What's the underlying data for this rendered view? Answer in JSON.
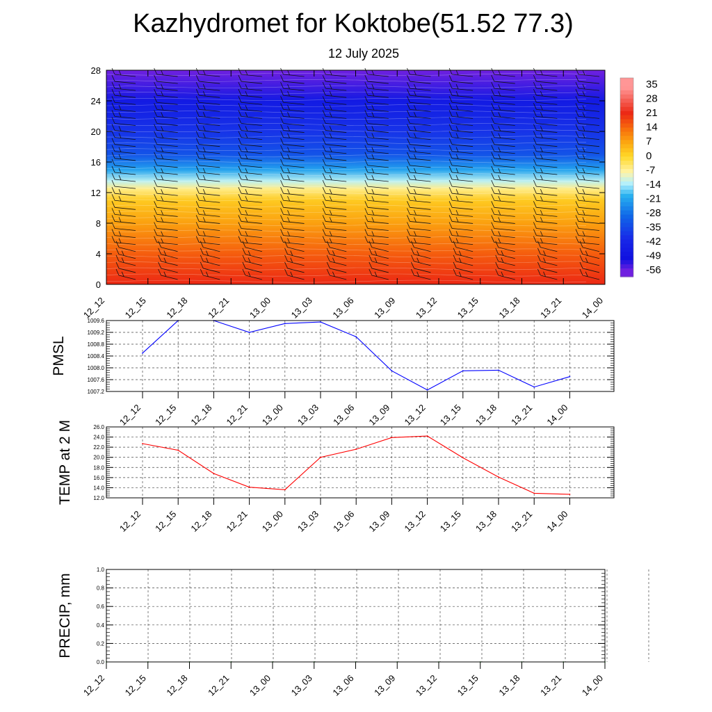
{
  "title": "Kazhydromet for Koktobe(51.52 77.3)",
  "subtitle": "12 July 2025",
  "chart_data": [
    {
      "type": "heatmap",
      "x": [
        "12_12",
        "12_15",
        "12_18",
        "12_21",
        "13_00",
        "13_03",
        "13_06",
        "13_09",
        "13_12",
        "13_15",
        "13_18",
        "13_21",
        "14_00"
      ],
      "y_ticks": [
        0,
        4,
        8,
        12,
        16,
        20,
        24,
        28
      ],
      "ylim": [
        0,
        28
      ],
      "colorbar_ticks": [
        35,
        28,
        21,
        14,
        7,
        0,
        -7,
        -14,
        -21,
        -28,
        -35,
        -42,
        -49,
        -56
      ],
      "colorbar_colors": [
        "#ff9090",
        "#f03020",
        "#f86010",
        "#fc9a10",
        "#ffd020",
        "#fff080",
        "#b0f0ff",
        "#30b8f0",
        "#1070e8",
        "#1a36e8",
        "#1010e0",
        "#7020e0"
      ],
      "profile": [
        [
          0,
          22
        ],
        [
          4,
          16
        ],
        [
          8,
          8
        ],
        [
          11,
          2
        ],
        [
          12.5,
          -6
        ],
        [
          13.5,
          -13
        ],
        [
          15,
          -22
        ],
        [
          17,
          -34
        ],
        [
          20,
          -40
        ],
        [
          24,
          -48
        ],
        [
          28,
          -58
        ]
      ],
      "wind_barbs": true
    },
    {
      "type": "line",
      "ylabel": "PMSL",
      "x": [
        "12_12",
        "12_15",
        "12_18",
        "12_21",
        "13_00",
        "13_03",
        "13_06",
        "13_09",
        "13_12",
        "13_15",
        "13_18",
        "13_21",
        "14_00"
      ],
      "values": [
        1008.5,
        1009.6,
        1009.6,
        1009.2,
        1009.5,
        1009.55,
        1009.05,
        1007.9,
        1007.25,
        1007.9,
        1007.92,
        1007.35,
        1007.7
      ],
      "ylim": [
        1007.2,
        1009.6
      ],
      "y_ticks": [
        "1007.2",
        "1007.6",
        "1008.0",
        "1008.4",
        "1008.8",
        "1009.2",
        "1009.6"
      ],
      "color": "#0000ff",
      "grid": true
    },
    {
      "type": "line",
      "ylabel": "TEMP at 2 M",
      "x": [
        "12_12",
        "12_15",
        "12_18",
        "12_21",
        "13_00",
        "13_03",
        "13_06",
        "13_09",
        "13_12",
        "13_15",
        "13_18",
        "13_21",
        "14_00"
      ],
      "values": [
        22.7,
        21.4,
        16.8,
        14.1,
        13.6,
        20.0,
        21.6,
        23.9,
        24.2,
        19.9,
        16.1,
        12.9,
        12.7
      ],
      "ylim": [
        12.0,
        26.0
      ],
      "y_ticks": [
        "12.0",
        "14.0",
        "16.0",
        "18.0",
        "20.0",
        "22.0",
        "24.0",
        "26.0"
      ],
      "color": "#ff0000",
      "grid": true
    },
    {
      "type": "line",
      "ylabel": "PRECIP, mm",
      "x": [
        "12_12",
        "12_15",
        "12_18",
        "12_21",
        "13_00",
        "13_03",
        "13_06",
        "13_09",
        "13_12",
        "13_15",
        "13_18",
        "13_21",
        "14_00"
      ],
      "values": [
        0,
        0,
        0,
        0,
        0,
        0,
        0,
        0,
        0,
        0,
        0,
        0,
        0
      ],
      "ylim": [
        0,
        1.0
      ],
      "y_ticks": [
        "0.0",
        "0.2",
        "0.4",
        "0.6",
        "0.8",
        "1.0"
      ],
      "color": "#008000",
      "grid": true
    }
  ]
}
